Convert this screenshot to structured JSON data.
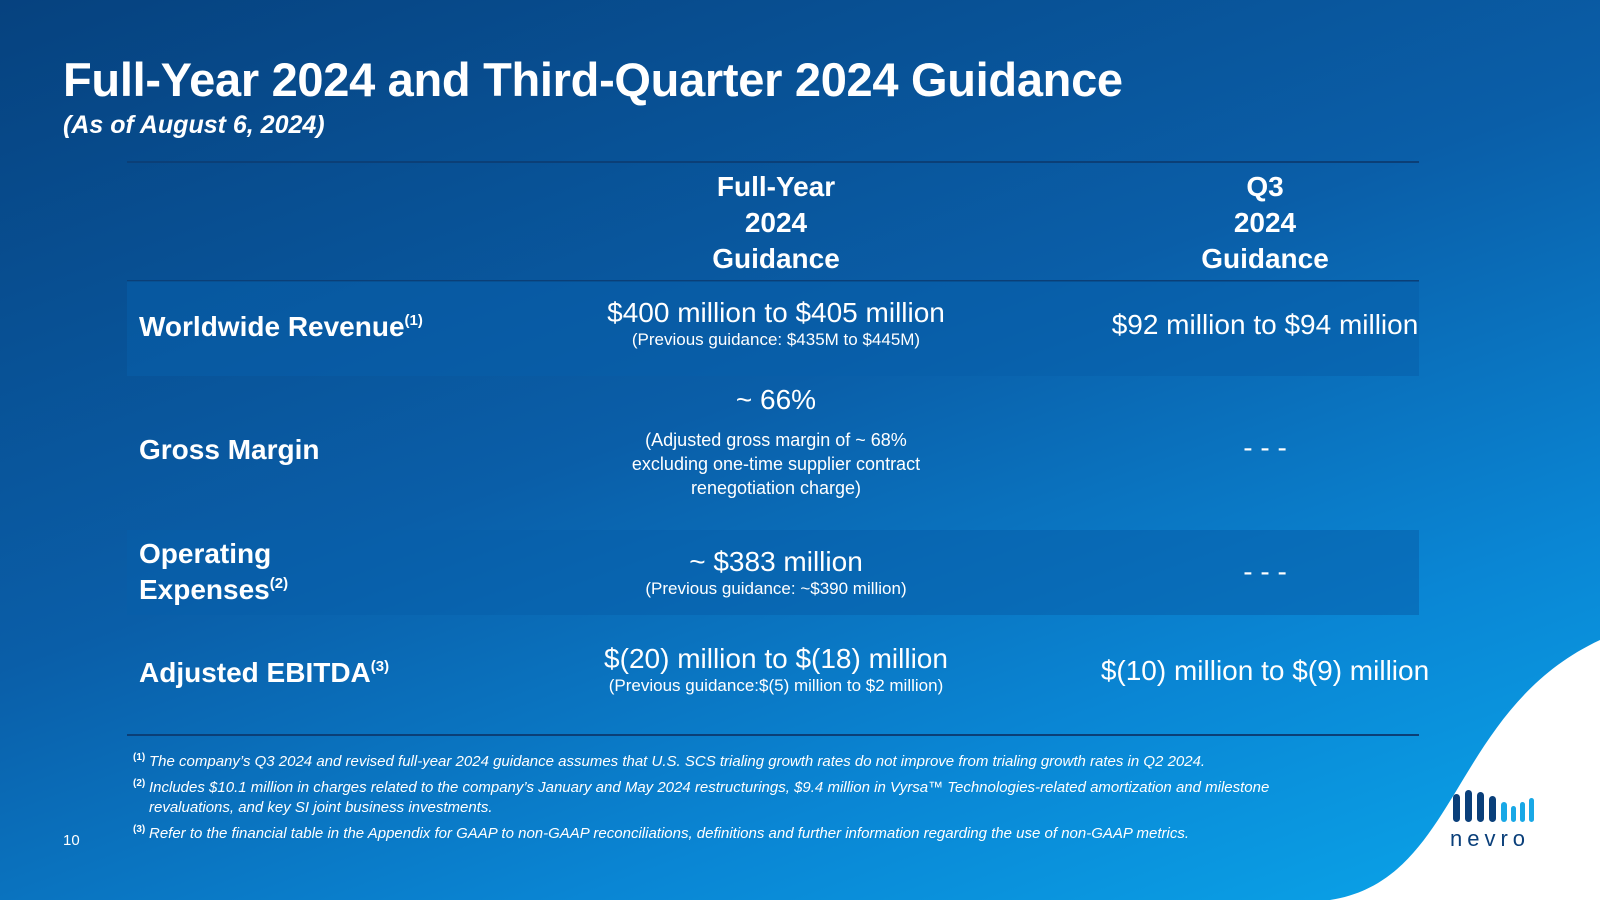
{
  "title": "Full-Year 2024 and Third-Quarter 2024 Guidance",
  "subtitle": "(As of August 6, 2024)",
  "columns": [
    {
      "lines": [
        "Full-Year",
        "2024",
        "Guidance"
      ]
    },
    {
      "lines": [
        "Q3",
        "2024",
        "Guidance"
      ]
    }
  ],
  "rows": [
    {
      "label": "Worldwide Revenue",
      "sup": "(1)",
      "fy_main": "$400 million to $405 million",
      "fy_sub": "(Previous guidance: $435M to $445M)",
      "q3": "$92 million to $94 million"
    },
    {
      "label": "Gross Margin",
      "fy_main": "~ 66%",
      "fy_sub_lines": [
        "(Adjusted gross margin of ~ 68%",
        "excluding one-time supplier contract",
        "renegotiation charge)"
      ],
      "q3": "- - -"
    },
    {
      "label_lines": [
        "Operating",
        "Expenses"
      ],
      "sup": "(2)",
      "fy_main": "~ $383 million",
      "fy_sub": "(Previous guidance: ~$390 million)",
      "q3": "- - -"
    },
    {
      "label": "Adjusted EBITDA",
      "sup": "(3)",
      "fy_main": "$(20) million to $(18) million",
      "fy_sub": "(Previous guidance:$(5) million to $2 million)",
      "q3": "$(10) million to $(9) million"
    }
  ],
  "footnotes": [
    {
      "num": "(1)",
      "text": "The company’s Q3 2024 and revised full-year 2024 guidance assumes that U.S. SCS trialing growth rates do not improve from trialing growth rates in Q2 2024."
    },
    {
      "num": "(2)",
      "text": "Includes $10.1 million in charges related to the company’s January and May 2024 restructurings, $9.4 million in Vyrsa™ Technologies-related amortization and milestone revaluations, and key SI joint business investments."
    },
    {
      "num": "(3)",
      "text": " Refer to the financial table in the Appendix for GAAP to non-GAAP reconciliations, definitions and further information regarding the use of non-GAAP metrics."
    }
  ],
  "page_number": "10",
  "logo": {
    "wordmark": "nevro",
    "mark_icon": "nevro-bars-icon"
  },
  "colors": {
    "bg_dark": "#06427f",
    "bg_light": "#0aa6ea",
    "band": "#0a5ea8",
    "rule": "#0b3f77",
    "logo": "#0a3f7a",
    "logo_accent": "#19a8e6"
  }
}
